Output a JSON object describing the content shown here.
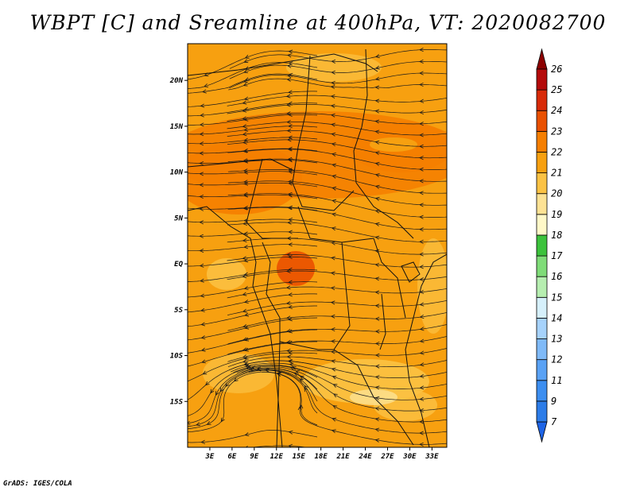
{
  "title": "WBPT [C] and Sreamline at 400hPa, VT: 2020082700",
  "credit": "GrADS: IGES/COLA",
  "map": {
    "lon_range": [
      0,
      35
    ],
    "lat_range": [
      -20,
      24
    ],
    "lat_ticks": [
      {
        "value": 20,
        "label": "20N"
      },
      {
        "value": 15,
        "label": "15N"
      },
      {
        "value": 10,
        "label": "10N"
      },
      {
        "value": 5,
        "label": "5N"
      },
      {
        "value": 0,
        "label": "EQ"
      },
      {
        "value": -5,
        "label": "5S"
      },
      {
        "value": -10,
        "label": "10S"
      },
      {
        "value": -15,
        "label": "15S"
      }
    ],
    "lon_ticks": [
      {
        "value": 3,
        "label": "3E"
      },
      {
        "value": 6,
        "label": "6E"
      },
      {
        "value": 9,
        "label": "9E"
      },
      {
        "value": 12,
        "label": "12E"
      },
      {
        "value": 15,
        "label": "15E"
      },
      {
        "value": 18,
        "label": "18E"
      },
      {
        "value": 21,
        "label": "21E"
      },
      {
        "value": 24,
        "label": "24E"
      },
      {
        "value": 27,
        "label": "27E"
      },
      {
        "value": 30,
        "label": "30E"
      },
      {
        "value": 33,
        "label": "33E"
      }
    ]
  },
  "colorbar": {
    "levels": [
      "7",
      "9",
      "11",
      "12",
      "13",
      "14",
      "15",
      "16",
      "17",
      "18",
      "19",
      "20",
      "21",
      "22",
      "23",
      "24",
      "25",
      "26"
    ],
    "colors": [
      "#1e64e6",
      "#2c7ce8",
      "#3c8ef0",
      "#5aa2f5",
      "#7fbaf8",
      "#a6d2fb",
      "#d6f0fb",
      "#b6eeb0",
      "#7fdc78",
      "#3cc23c",
      "#fff8c8",
      "#fde294",
      "#fbc244",
      "#f7a010",
      "#f57e00",
      "#e95000",
      "#d82a08",
      "#b40a0a",
      "#8c0000"
    ]
  },
  "streamline_color": "#1a1a1a"
}
